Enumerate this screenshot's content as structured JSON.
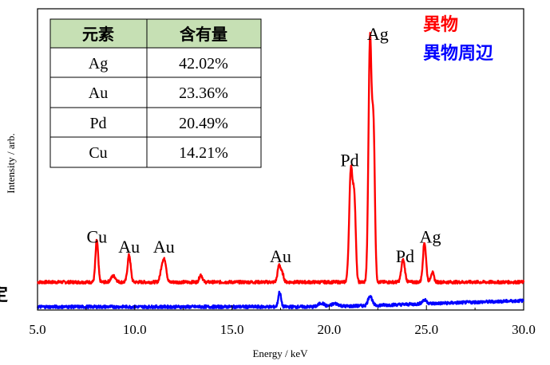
{
  "chart_data": {
    "type": "line",
    "title": "",
    "xlabel": "Energy / keV",
    "ylabel": "Intensity / arb.",
    "xlim": [
      5.0,
      30.0
    ],
    "ylim": [
      0,
      100
    ],
    "x_ticks": [
      "5.0",
      "10.0",
      "15.0",
      "20.0",
      "25.0",
      "30.0"
    ],
    "x_tick_values": [
      5,
      10,
      15,
      20,
      25,
      30
    ],
    "grid": false,
    "legend_position": "top-right",
    "series": [
      {
        "name": "異物",
        "color": "#ff0000",
        "baseline": 10,
        "peaks": [
          {
            "x": 8.05,
            "height": 17,
            "width": 0.07
          },
          {
            "x": 8.9,
            "height": 2.5,
            "width": 0.12
          },
          {
            "x": 9.71,
            "height": 11,
            "width": 0.08
          },
          {
            "x": 11.44,
            "height": 8,
            "width": 0.1
          },
          {
            "x": 11.58,
            "height": 5,
            "width": 0.07
          },
          {
            "x": 13.4,
            "height": 3,
            "width": 0.08
          },
          {
            "x": 17.43,
            "height": 7,
            "width": 0.08
          },
          {
            "x": 17.6,
            "height": 3,
            "width": 0.07
          },
          {
            "x": 21.12,
            "height": 46,
            "width": 0.09
          },
          {
            "x": 21.3,
            "height": 30,
            "width": 0.07
          },
          {
            "x": 22.1,
            "height": 98,
            "width": 0.08
          },
          {
            "x": 22.28,
            "height": 60,
            "width": 0.07
          },
          {
            "x": 23.8,
            "height": 9,
            "width": 0.09
          },
          {
            "x": 24.9,
            "height": 16,
            "width": 0.08
          },
          {
            "x": 25.3,
            "height": 4,
            "width": 0.08
          }
        ]
      },
      {
        "name": "異物周辺",
        "color": "#0000ff",
        "baseline": 0,
        "peaks": [
          {
            "x": 17.45,
            "height": 6,
            "width": 0.07
          },
          {
            "x": 19.6,
            "height": 1.5,
            "width": 0.15
          },
          {
            "x": 20.3,
            "height": 1.2,
            "width": 0.2
          },
          {
            "x": 22.1,
            "height": 4,
            "width": 0.1
          },
          {
            "x": 24.9,
            "height": 1.5,
            "width": 0.12
          }
        ],
        "rise_end": 2.5
      }
    ],
    "annotations": [
      {
        "text": "Cu",
        "x": 8.05,
        "y": 26
      },
      {
        "text": "Au",
        "x": 9.71,
        "y": 22
      },
      {
        "text": "Au",
        "x": 11.5,
        "y": 22
      },
      {
        "text": "Au",
        "x": 17.5,
        "y": 18
      },
      {
        "text": "Pd",
        "x": 21.05,
        "y": 57
      },
      {
        "text": "Ag",
        "x": 22.5,
        "y": 108
      },
      {
        "text": "Pd",
        "x": 23.9,
        "y": 18
      },
      {
        "text": "Ag",
        "x": 25.2,
        "y": 26
      }
    ],
    "legend": [
      {
        "label": "異物",
        "color": "#ff0000"
      },
      {
        "label": "異物周辺",
        "color": "#0000ff"
      }
    ],
    "table": {
      "header_bg": "#c6e0b4",
      "headers": [
        "元素",
        "含有量"
      ],
      "rows": [
        [
          "Ag",
          "42.02%"
        ],
        [
          "Au",
          "23.36%"
        ],
        [
          "Pd",
          "20.49%"
        ],
        [
          "Cu",
          "14.21%"
        ]
      ]
    }
  },
  "edge_glyph": "定"
}
